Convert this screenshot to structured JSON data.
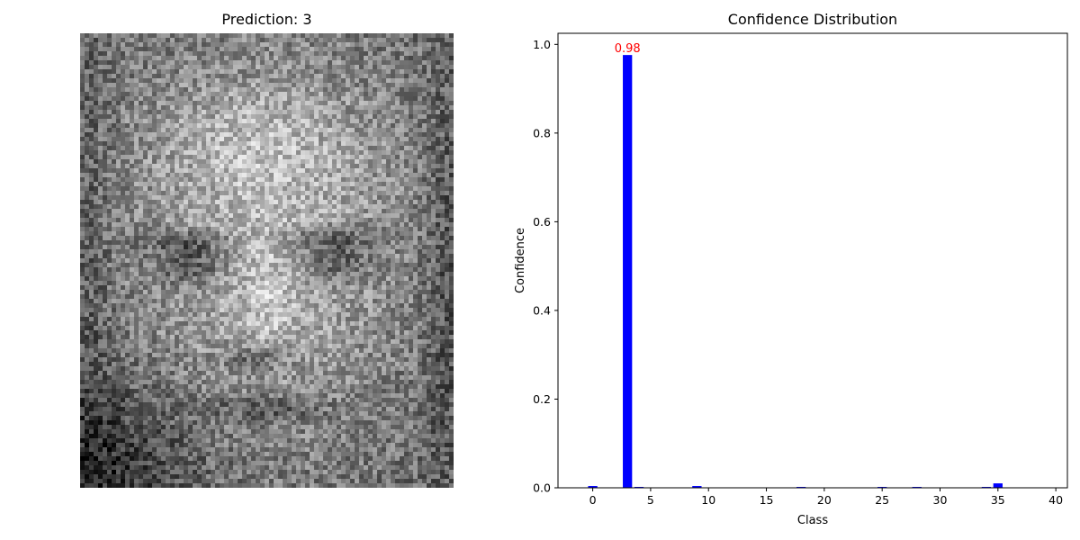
{
  "image_panel": {
    "title": "Prediction: 3",
    "description_icon": "grayscale-face-image"
  },
  "chart_data": {
    "type": "bar",
    "title": "Confidence Distribution",
    "xlabel": "Class",
    "ylabel": "Confidence",
    "xlim": [
      -3,
      41
    ],
    "ylim": [
      0,
      1.025
    ],
    "xticks": [
      0,
      5,
      10,
      15,
      20,
      25,
      30,
      35,
      40
    ],
    "yticks": [
      0.0,
      0.2,
      0.4,
      0.6,
      0.8,
      1.0
    ],
    "ytick_labels": [
      "0.0",
      "0.2",
      "0.4",
      "0.6",
      "0.8",
      "1.0"
    ],
    "categories": [
      0,
      1,
      2,
      3,
      4,
      5,
      6,
      7,
      8,
      9,
      10,
      11,
      12,
      13,
      14,
      15,
      16,
      17,
      18,
      19,
      20,
      21,
      22,
      23,
      24,
      25,
      26,
      27,
      28,
      29,
      30,
      31,
      32,
      33,
      34,
      35,
      36,
      37,
      38,
      39
    ],
    "values": [
      0.004,
      0.0005,
      0.0005,
      0.976,
      0.002,
      0.0005,
      0.0005,
      0.0005,
      0.0005,
      0.004,
      0.0005,
      0.0005,
      0.0005,
      0.0005,
      0.0005,
      0.0005,
      0.0005,
      0.0005,
      0.002,
      0.0005,
      0.0005,
      0.0005,
      0.0005,
      0.0005,
      0.0005,
      0.002,
      0.0005,
      0.0005,
      0.002,
      0.0005,
      0.0005,
      0.0005,
      0.0005,
      0.0005,
      0.002,
      0.01,
      0.0005,
      0.0005,
      0.0005,
      0.0005
    ],
    "annotation": {
      "category": 3,
      "text": "0.98"
    },
    "colors": {
      "bar": "#0000ff",
      "annotation": "#ff0000",
      "axis": "#000000"
    },
    "grid": false,
    "legend": null
  }
}
